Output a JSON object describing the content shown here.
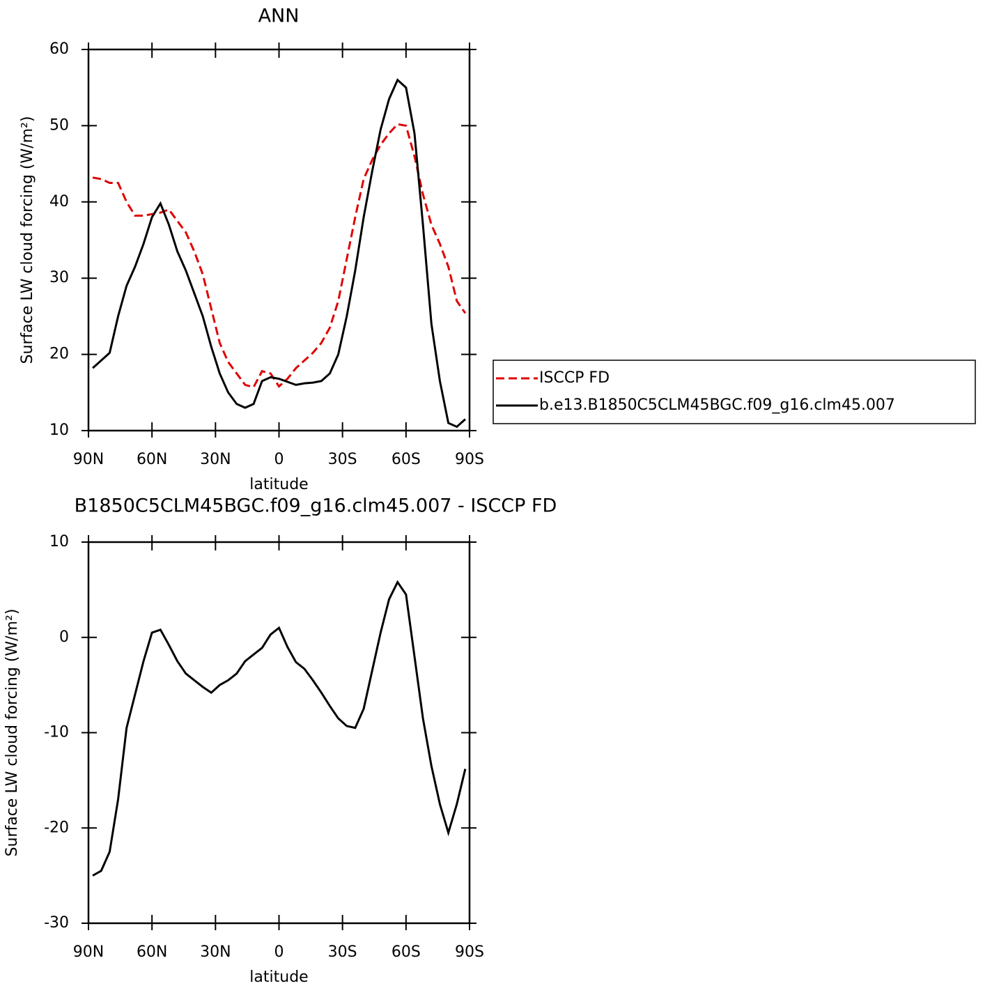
{
  "chart_data": [
    {
      "type": "line",
      "title": "ANN",
      "x_label": "latitude",
      "y_label": "Surface LW cloud forcing (W/m²)",
      "x": [
        88,
        84,
        80,
        76,
        72,
        68,
        64,
        60,
        56,
        52,
        48,
        44,
        40,
        36,
        32,
        28,
        24,
        20,
        16,
        12,
        8,
        4,
        0,
        -4,
        -8,
        -12,
        -16,
        -20,
        -24,
        -28,
        -32,
        -36,
        -40,
        -44,
        -48,
        -52,
        -56,
        -60,
        -64,
        -68,
        -72,
        -76,
        -80,
        -84,
        -88
      ],
      "series": [
        {
          "name": "ISCCP FD",
          "color": "#e00000",
          "linestyle": "dashed",
          "values": [
            43.2,
            43,
            42.5,
            42.5,
            40,
            38.2,
            38.2,
            38.4,
            38.6,
            39,
            37.5,
            36,
            33.5,
            30.5,
            26,
            21.5,
            19,
            17.5,
            16,
            15.7,
            17.8,
            17.5,
            15.8,
            16.8,
            18.2,
            19.2,
            20.2,
            21.5,
            23.5,
            27,
            32.5,
            38,
            43,
            45.5,
            47.5,
            49,
            50.2,
            50,
            46,
            41,
            37,
            34.5,
            31.5,
            27,
            25.4
          ]
        },
        {
          "name": "b.e13.B1850C5CLM45BGC.f09_g16.clm45.007",
          "color": "#000000",
          "linestyle": "solid",
          "values": [
            18.2,
            19.2,
            20.2,
            25,
            29,
            31.5,
            34.5,
            38,
            39.8,
            37,
            33.5,
            31,
            28,
            25,
            21,
            17.5,
            15,
            13.5,
            13,
            13.5,
            16.5,
            17,
            16.8,
            16.4,
            16,
            16.2,
            16.3,
            16.5,
            17.5,
            20,
            25,
            31,
            38,
            44,
            49.5,
            53.5,
            56,
            55,
            49,
            37,
            24,
            16.5,
            11,
            10.5,
            11.5
          ]
        }
      ],
      "xlim": [
        90,
        -90
      ],
      "xticks": [
        {
          "value": 90,
          "label": "90N"
        },
        {
          "value": 60,
          "label": "60N"
        },
        {
          "value": 30,
          "label": "30N"
        },
        0,
        {
          "value": -30,
          "label": "30S"
        },
        {
          "value": -60,
          "label": "60S"
        },
        {
          "value": -90,
          "label": "90S"
        }
      ],
      "ylim": [
        10,
        60
      ],
      "yticks": [
        10,
        20,
        30,
        40,
        50,
        60
      ],
      "legend": "outside-right"
    },
    {
      "type": "line",
      "title": "B1850C5CLM45BGC.f09_g16.clm45.007 - ISCCP FD",
      "x_label": "latitude",
      "y_label": "Surface LW cloud forcing (W/m²)",
      "x": [
        88,
        84,
        80,
        76,
        72,
        68,
        64,
        60,
        56,
        52,
        48,
        44,
        40,
        36,
        32,
        28,
        24,
        20,
        16,
        12,
        8,
        4,
        0,
        -4,
        -8,
        -12,
        -16,
        -20,
        -24,
        -28,
        -32,
        -36,
        -40,
        -44,
        -48,
        -52,
        -56,
        -60,
        -64,
        -68,
        -72,
        -76,
        -80,
        -84,
        -88
      ],
      "series": [
        {
          "color": "#000000",
          "linestyle": "solid",
          "values": [
            -25,
            -24.5,
            -22.5,
            -17,
            -9.5,
            -6,
            -2.5,
            0.5,
            0.8,
            -0.8,
            -2.5,
            -3.8,
            -4.5,
            -5.2,
            -5.8,
            -5,
            -4.5,
            -3.8,
            -2.5,
            -1.8,
            -1.1,
            0.3,
            1,
            -1,
            -2.6,
            -3.3,
            -4.5,
            -5.8,
            -7.2,
            -8.5,
            -9.3,
            -9.5,
            -7.5,
            -3.5,
            0.5,
            4,
            5.8,
            4.5,
            -2,
            -8.5,
            -13.5,
            -17.5,
            -20.5,
            -17.5,
            -13.8
          ]
        }
      ],
      "xlim": [
        90,
        -90
      ],
      "xticks": [
        {
          "value": 90,
          "label": "90N"
        },
        {
          "value": 60,
          "label": "60N"
        },
        {
          "value": 30,
          "label": "30N"
        },
        0,
        {
          "value": -30,
          "label": "30S"
        },
        {
          "value": -60,
          "label": "60S"
        },
        {
          "value": -90,
          "label": "90S"
        }
      ],
      "ylim": [
        -30,
        10
      ],
      "yticks": [
        -30,
        -20,
        -10,
        0,
        10
      ]
    }
  ]
}
